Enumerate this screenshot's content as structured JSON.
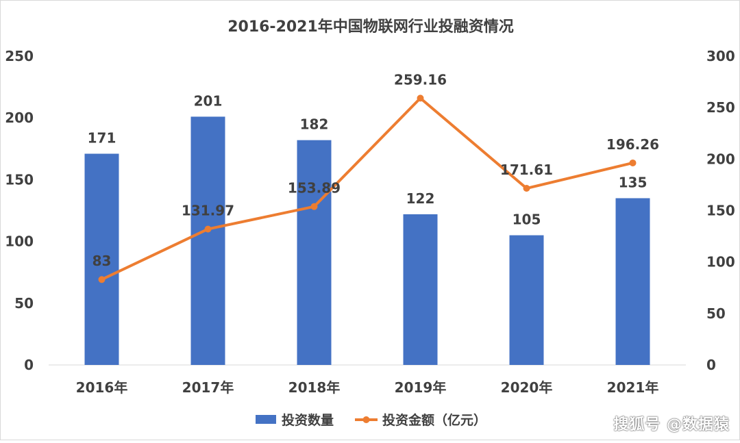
{
  "chart_data": {
    "type": "bar",
    "title": "2016-2021年中国物联网行业投融资情况",
    "categories": [
      "2016年",
      "2017年",
      "2018年",
      "2019年",
      "2020年",
      "2021年"
    ],
    "series": [
      {
        "name": "投资数量",
        "type": "bar",
        "axis": "left",
        "color": "#4472C4",
        "values": [
          171,
          201,
          182,
          122,
          105,
          135
        ]
      },
      {
        "name": "投资金额（亿元）",
        "type": "line",
        "axis": "right",
        "color": "#ED7D31",
        "values": [
          83,
          131.97,
          153.89,
          259.16,
          171.61,
          196.26
        ]
      }
    ],
    "y_left": {
      "min": 0,
      "max": 250,
      "ticks": [
        0,
        50,
        100,
        150,
        200,
        250
      ]
    },
    "y_right": {
      "min": 0,
      "max": 300,
      "ticks": [
        0,
        50,
        100,
        150,
        200,
        250,
        300
      ]
    },
    "grid": false,
    "legend": "bottom-center"
  },
  "watermark": "搜狐号 @数据猿"
}
